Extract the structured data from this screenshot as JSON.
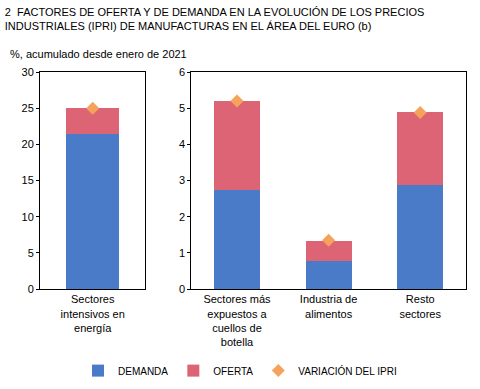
{
  "chart_data": [
    {
      "type": "bar",
      "title": "2  FACTORES DE OFERTA Y DE DEMANDA EN LA EVOLUCIÓN DE LOS PRECIOS\nINDUSTRIALES (IPRI) DE MANUFACTURAS EN EL ÁREA DEL EURO (b)",
      "subtitle": "%, acumulado desde enero de 2021",
      "categories": [
        "Sectores intensivos en energía"
      ],
      "series": [
        {
          "name": "DEMANDA",
          "type": "bar",
          "color": "#4a7bc8",
          "values": [
            21.4
          ]
        },
        {
          "name": "OFERTA",
          "type": "bar",
          "color": "#dc6474",
          "values": [
            3.6
          ]
        },
        {
          "name": "VARIACIÓN DEL IPRI",
          "type": "scatter",
          "marker": "diamond",
          "color": "#f5a35c",
          "values": [
            25.0
          ]
        }
      ],
      "stacked": true,
      "ylim": [
        0,
        30
      ],
      "yticks": [
        0,
        5,
        10,
        15,
        20,
        25,
        30
      ],
      "grid": false,
      "legend": "bottom"
    },
    {
      "type": "bar",
      "categories": [
        "Sectores más expuestos a cuellos de botella",
        "Industria de alimentos",
        "Resto sectores"
      ],
      "series": [
        {
          "name": "DEMANDA",
          "type": "bar",
          "color": "#4a7bc8",
          "values": [
            2.75,
            0.78,
            2.88
          ]
        },
        {
          "name": "OFERTA",
          "type": "bar",
          "color": "#dc6474",
          "values": [
            2.45,
            0.55,
            2.02
          ]
        },
        {
          "name": "VARIACIÓN DEL IPRI",
          "type": "scatter",
          "marker": "diamond",
          "color": "#f5a35c",
          "values": [
            5.2,
            1.35,
            4.88
          ]
        }
      ],
      "stacked": true,
      "ylim": [
        0,
        6
      ],
      "yticks": [
        0,
        1,
        2,
        3,
        4,
        5,
        6
      ],
      "grid": false
    }
  ]
}
